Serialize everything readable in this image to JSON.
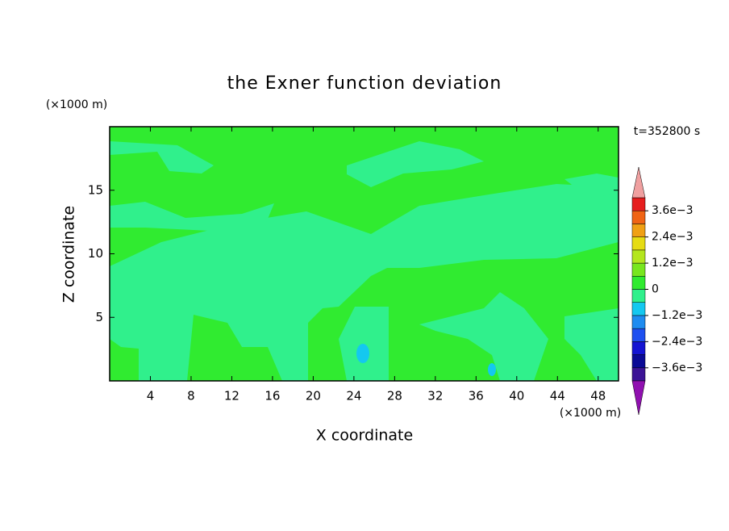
{
  "chart_data": {
    "type": "contour",
    "title": "the Exner function deviation",
    "x_label": "X coordinate",
    "y_label": "Z coordinate",
    "x_unit": "(×1000 m)",
    "y_unit": "(×1000 m)",
    "time_label": "t=352800 s",
    "xlim": [
      0,
      50
    ],
    "xticks": [
      4,
      8,
      12,
      16,
      20,
      24,
      28,
      32,
      36,
      40,
      44,
      48
    ],
    "ylim": [
      0,
      20
    ],
    "yticks": [
      5,
      10,
      15
    ],
    "colorbar": {
      "range": [
        -0.0042,
        0.0042
      ],
      "ticks": [
        {
          "value": -0.0036,
          "label": "−3.6e−3"
        },
        {
          "value": -0.0024,
          "label": "−2.4e−3"
        },
        {
          "value": -0.0012,
          "label": "−1.2e−3"
        },
        0,
        {
          "value": 0.0012,
          "label": "1.2e−3"
        },
        {
          "value": 0.0024,
          "label": "2.4e−3"
        },
        {
          "value": 0.0036,
          "label": "3.6e−3"
        }
      ],
      "under_color": "#9010b0",
      "over_color": "#f0a0a0",
      "colors": [
        "#3c1496",
        "#0a0a96",
        "#1414d2",
        "#1e50f0",
        "#1e8cf0",
        "#14c8f0",
        "#30f08c",
        "#30eb30",
        "#78e61e",
        "#b4e61e",
        "#e6dc14",
        "#f0a014",
        "#f06414",
        "#e61e1e"
      ]
    }
  }
}
